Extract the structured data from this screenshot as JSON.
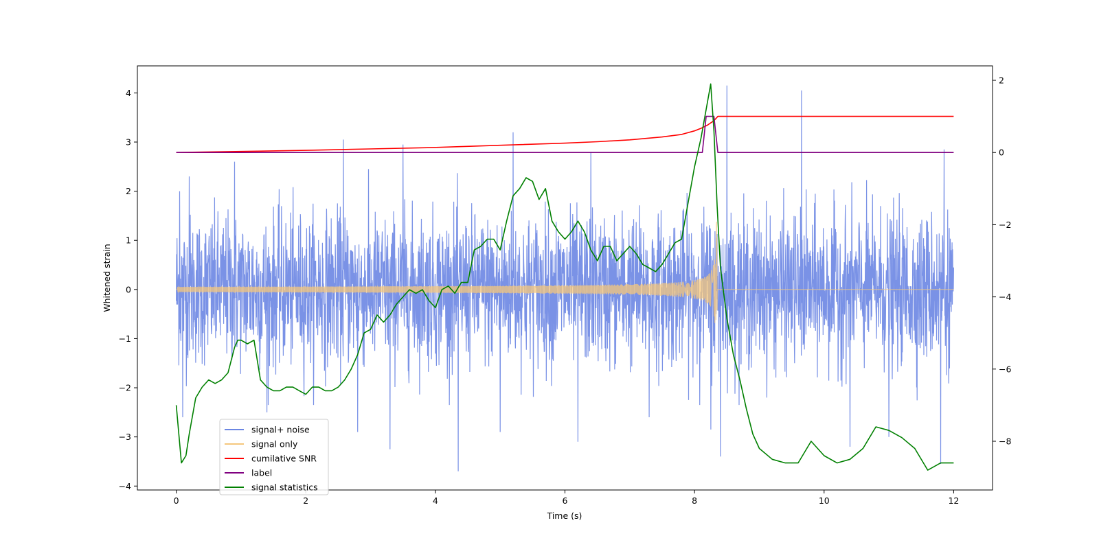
{
  "chart_data": {
    "type": "line",
    "title": "",
    "xlabel": "Time (s)",
    "ylabel_left": "Whitened strain",
    "ylabel_right": "",
    "xlim": [
      -0.6,
      12.6
    ],
    "ylim_left": [
      -4.08,
      4.55
    ],
    "ylim_right": [
      -9.35,
      2.4
    ],
    "xticks": [
      0,
      2,
      4,
      6,
      8,
      10,
      12
    ],
    "xtick_labels": [
      "0",
      "2",
      "4",
      "6",
      "8",
      "10",
      "12"
    ],
    "yticks_left": [
      -4,
      -3,
      -2,
      -1,
      0,
      1,
      2,
      3,
      4
    ],
    "ytick_labels_left": [
      "−4",
      "−3",
      "−2",
      "−1",
      "0",
      "1",
      "2",
      "3",
      "4"
    ],
    "yticks_right": [
      -8,
      -6,
      -4,
      -2,
      0,
      2
    ],
    "ytick_labels_right": [
      "−8",
      "−6",
      "−4",
      "−2",
      "0",
      "2"
    ],
    "legend_position": "lower-left",
    "series": [
      {
        "name": "signal+ noise",
        "axis": "left",
        "color": "#6b86e3",
        "kind": "noise",
        "x_range": [
          0,
          12
        ],
        "envelope_1sigma": [
          -1.5,
          1.5
        ],
        "peaks_high": [
          [
            0.05,
            2.0
          ],
          [
            0.2,
            2.3
          ],
          [
            0.9,
            2.6
          ],
          [
            1.4,
            2.6
          ],
          [
            2.58,
            3.05
          ],
          [
            3.5,
            2.95
          ],
          [
            4.35,
            2.6
          ],
          [
            5.2,
            3.2
          ],
          [
            6.4,
            2.8
          ],
          [
            8.25,
            2.6
          ],
          [
            8.5,
            4.15
          ],
          [
            9.65,
            4.05
          ],
          [
            11.85,
            2.85
          ]
        ],
        "peaks_low": [
          [
            0.1,
            -2.6
          ],
          [
            1.4,
            -2.5
          ],
          [
            2.8,
            -2.9
          ],
          [
            3.3,
            -3.25
          ],
          [
            4.35,
            -3.7
          ],
          [
            5.0,
            -2.9
          ],
          [
            6.2,
            -3.1
          ],
          [
            7.3,
            -2.6
          ],
          [
            8.25,
            -2.85
          ],
          [
            8.4,
            -3.4
          ],
          [
            10.4,
            -3.2
          ],
          [
            11.0,
            -3.0
          ],
          [
            11.8,
            -3.55
          ]
        ]
      },
      {
        "name": "signal only",
        "axis": "left",
        "color": "#f5c77c",
        "kind": "chirp",
        "x_range": [
          0,
          12
        ],
        "merger_time": 8.35,
        "peak_amplitude": 1.4
      },
      {
        "name": "cumilative SNR",
        "axis": "right",
        "color": "#ff0000",
        "x": [
          0,
          1,
          2,
          3,
          4,
          5,
          6,
          6.5,
          7,
          7.5,
          7.8,
          8.0,
          8.1,
          8.2,
          8.3,
          8.35,
          8.36,
          12
        ],
        "y": [
          0.0,
          0.03,
          0.06,
          0.1,
          0.14,
          0.2,
          0.26,
          0.3,
          0.35,
          0.43,
          0.5,
          0.6,
          0.67,
          0.76,
          0.88,
          0.98,
          1.0,
          1.0
        ]
      },
      {
        "name": "label",
        "axis": "right",
        "color": "#800080",
        "x": [
          0,
          8.12,
          8.18,
          8.3,
          8.36,
          12
        ],
        "y": [
          0,
          0,
          1,
          1,
          0,
          0
        ]
      },
      {
        "name": "signal statistics",
        "axis": "right",
        "color": "#008000",
        "x": [
          0,
          0.08,
          0.15,
          0.2,
          0.3,
          0.4,
          0.5,
          0.6,
          0.7,
          0.8,
          0.9,
          0.95,
          1.0,
          1.1,
          1.2,
          1.3,
          1.4,
          1.5,
          1.6,
          1.7,
          1.8,
          1.9,
          2.0,
          2.1,
          2.2,
          2.3,
          2.4,
          2.5,
          2.6,
          2.7,
          2.8,
          2.9,
          3.0,
          3.1,
          3.2,
          3.3,
          3.4,
          3.5,
          3.6,
          3.7,
          3.8,
          3.9,
          4.0,
          4.1,
          4.2,
          4.3,
          4.4,
          4.5,
          4.6,
          4.7,
          4.8,
          4.9,
          5.0,
          5.1,
          5.2,
          5.3,
          5.4,
          5.5,
          5.6,
          5.7,
          5.8,
          5.9,
          6.0,
          6.1,
          6.2,
          6.3,
          6.4,
          6.5,
          6.6,
          6.7,
          6.8,
          6.9,
          7.0,
          7.1,
          7.2,
          7.3,
          7.4,
          7.5,
          7.6,
          7.7,
          7.8,
          7.9,
          8.0,
          8.1,
          8.2,
          8.25,
          8.3,
          8.35,
          8.4,
          8.5,
          8.6,
          8.7,
          8.8,
          8.9,
          9.0,
          9.2,
          9.4,
          9.6,
          9.8,
          10.0,
          10.2,
          10.4,
          10.6,
          10.8,
          11.0,
          11.2,
          11.4,
          11.6,
          11.8,
          12.0
        ],
        "y": [
          -7.0,
          -8.6,
          -8.4,
          -7.8,
          -6.8,
          -6.5,
          -6.3,
          -6.4,
          -6.3,
          -6.1,
          -5.4,
          -5.2,
          -5.2,
          -5.3,
          -5.2,
          -6.3,
          -6.5,
          -6.6,
          -6.6,
          -6.5,
          -6.5,
          -6.6,
          -6.7,
          -6.5,
          -6.5,
          -6.6,
          -6.6,
          -6.5,
          -6.3,
          -6.0,
          -5.6,
          -5.0,
          -4.9,
          -4.5,
          -4.7,
          -4.5,
          -4.2,
          -4.0,
          -3.8,
          -3.9,
          -3.8,
          -4.1,
          -4.3,
          -3.8,
          -3.7,
          -3.9,
          -3.6,
          -3.6,
          -2.7,
          -2.6,
          -2.4,
          -2.4,
          -2.7,
          -1.9,
          -1.2,
          -1.0,
          -0.7,
          -0.8,
          -1.3,
          -1.0,
          -1.9,
          -2.2,
          -2.4,
          -2.2,
          -1.9,
          -2.2,
          -2.7,
          -3.0,
          -2.6,
          -2.6,
          -3.0,
          -2.8,
          -2.6,
          -2.8,
          -3.1,
          -3.2,
          -3.3,
          -3.1,
          -2.8,
          -2.5,
          -2.4,
          -1.4,
          -0.4,
          0.4,
          1.4,
          1.9,
          0.6,
          -1.5,
          -3.2,
          -4.6,
          -5.6,
          -6.3,
          -7.1,
          -7.8,
          -8.2,
          -8.5,
          -8.6,
          -8.6,
          -8.0,
          -8.4,
          -8.6,
          -8.5,
          -8.2,
          -7.6,
          -7.7,
          -7.9,
          -8.2,
          -8.8,
          -8.6,
          -8.6
        ]
      }
    ]
  }
}
